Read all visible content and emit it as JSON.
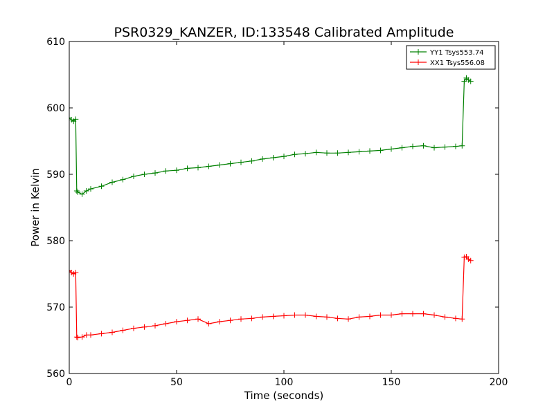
{
  "chart_data": {
    "type": "line",
    "title": "PSR0329_KANZER, ID:133548 Calibrated Amplitude",
    "xlabel": "Time (seconds)",
    "ylabel": "Power in Kelvin",
    "xlim": [
      0,
      200
    ],
    "ylim": [
      560,
      610
    ],
    "xticks": [
      0,
      50,
      100,
      150,
      200
    ],
    "yticks": [
      560,
      570,
      580,
      590,
      600,
      610
    ],
    "grid": false,
    "legend_position": "top-right",
    "marker": "+",
    "series": [
      {
        "name": "YY1 Tsys553.74",
        "color": "#008000",
        "x": [
          0,
          1,
          2,
          3,
          3.5,
          4,
          6,
          8,
          10,
          15,
          20,
          25,
          30,
          35,
          40,
          45,
          50,
          55,
          60,
          65,
          70,
          75,
          80,
          85,
          90,
          95,
          100,
          105,
          110,
          115,
          120,
          125,
          130,
          135,
          140,
          145,
          150,
          155,
          160,
          165,
          170,
          175,
          180,
          183,
          184,
          185,
          186,
          187
        ],
        "y": [
          598.5,
          598.2,
          598.0,
          598.3,
          587.5,
          587.3,
          587.0,
          587.5,
          587.8,
          588.2,
          588.8,
          589.2,
          589.7,
          590.0,
          590.2,
          590.5,
          590.6,
          590.9,
          591.0,
          591.2,
          591.4,
          591.6,
          591.8,
          592.0,
          592.3,
          592.5,
          592.7,
          593.0,
          593.1,
          593.3,
          593.2,
          593.2,
          593.3,
          593.4,
          593.5,
          593.6,
          593.8,
          594.0,
          594.2,
          594.3,
          594.0,
          594.1,
          594.2,
          594.3,
          604.0,
          604.5,
          604.2,
          604.0
        ]
      },
      {
        "name": "XX1 Tsys556.08",
        "color": "#ff0000",
        "x": [
          0,
          1,
          2,
          3,
          3.5,
          4,
          6,
          8,
          10,
          15,
          20,
          25,
          30,
          35,
          40,
          45,
          50,
          55,
          60,
          65,
          70,
          75,
          80,
          85,
          90,
          95,
          100,
          105,
          110,
          115,
          120,
          125,
          130,
          135,
          140,
          145,
          150,
          155,
          160,
          165,
          170,
          175,
          180,
          183,
          184,
          185,
          186,
          187
        ],
        "y": [
          575.5,
          575.2,
          575.0,
          575.2,
          565.5,
          565.4,
          565.5,
          565.8,
          565.8,
          566.0,
          566.2,
          566.5,
          566.8,
          567.0,
          567.2,
          567.5,
          567.8,
          568.0,
          568.2,
          567.5,
          567.8,
          568.0,
          568.2,
          568.3,
          568.5,
          568.6,
          568.7,
          568.8,
          568.8,
          568.6,
          568.5,
          568.3,
          568.2,
          568.5,
          568.6,
          568.8,
          568.8,
          569.0,
          569.0,
          569.0,
          568.8,
          568.5,
          568.3,
          568.2,
          577.5,
          577.6,
          577.2,
          577.0
        ]
      }
    ]
  }
}
